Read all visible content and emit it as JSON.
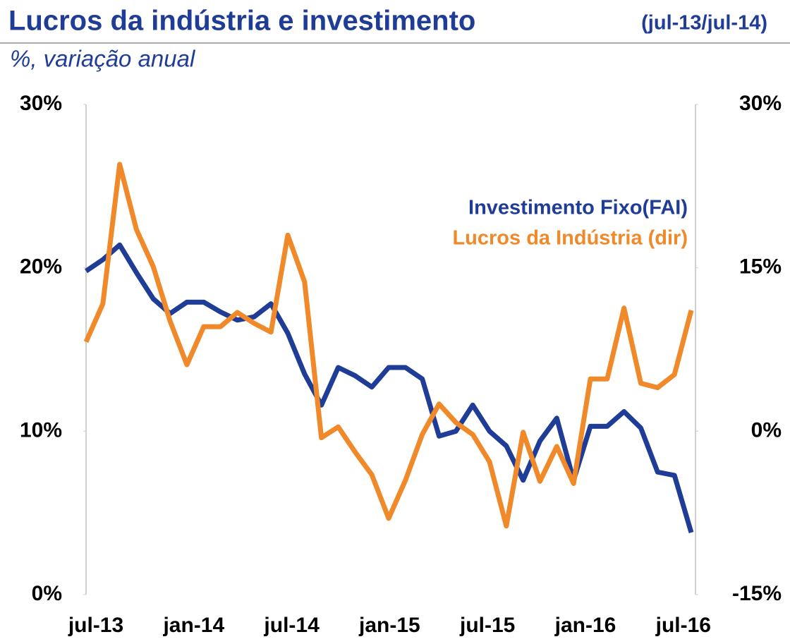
{
  "chart_data": {
    "type": "line",
    "title": "Lucros da indústria e investimento",
    "title_note": "(jul-13/jul-14)",
    "subtitle": "%, variação anual",
    "categories": [
      "jul-13",
      null,
      null,
      null,
      null,
      null,
      "jan-14",
      null,
      null,
      null,
      null,
      null,
      "jul-14",
      null,
      null,
      null,
      null,
      null,
      "jan-15",
      null,
      null,
      null,
      null,
      null,
      "jul-15",
      null,
      null,
      null,
      null,
      null,
      "jan-16",
      null,
      null,
      null,
      null,
      null,
      "jul-16"
    ],
    "series": [
      {
        "name": "Investimento Fixo(FAI)",
        "color": "#1f3c96",
        "axis": "y",
        "values": [
          19.8,
          20.5,
          21.4,
          19.7,
          18.1,
          17.2,
          17.9,
          17.9,
          17.3,
          16.8,
          17.0,
          17.8,
          16.0,
          13.5,
          11.6,
          13.9,
          13.4,
          12.7,
          13.9,
          13.9,
          13.2,
          9.7,
          10.0,
          11.6,
          10.0,
          9.1,
          7.0,
          9.4,
          10.8,
          7.0,
          10.3,
          10.3,
          11.2,
          10.2,
          7.5,
          7.3,
          3.8
        ]
      },
      {
        "name": "Lucros da Indústria (dir)",
        "color": "#f0892a",
        "axis": "y2",
        "values": [
          8.2,
          11.7,
          24.5,
          18.5,
          15.1,
          10.1,
          6.1,
          9.6,
          9.6,
          10.9,
          9.9,
          9.1,
          18.0,
          13.7,
          -0.6,
          0.4,
          -1.9,
          -4.0,
          -8.0,
          -4.5,
          -0.3,
          2.5,
          0.8,
          -0.3,
          -2.8,
          -8.7,
          -0.1,
          -4.6,
          -1.4,
          -4.8,
          4.8,
          4.8,
          11.3,
          4.4,
          4.0,
          5.2,
          11.1
        ]
      }
    ],
    "ylim": [
      0,
      30
    ],
    "yticks": [
      {
        "value": 0,
        "label": "0%"
      },
      {
        "value": 10,
        "label": "10%"
      },
      {
        "value": 20,
        "label": "20%"
      },
      {
        "value": 30,
        "label": "30%"
      }
    ],
    "y2lim": [
      -15,
      30
    ],
    "y2ticks": [
      {
        "value": -15,
        "label": "-15%"
      },
      {
        "value": 0,
        "label": "0%"
      },
      {
        "value": 15,
        "label": "15%"
      },
      {
        "value": 30,
        "label": "30%"
      }
    ],
    "grid": false
  }
}
